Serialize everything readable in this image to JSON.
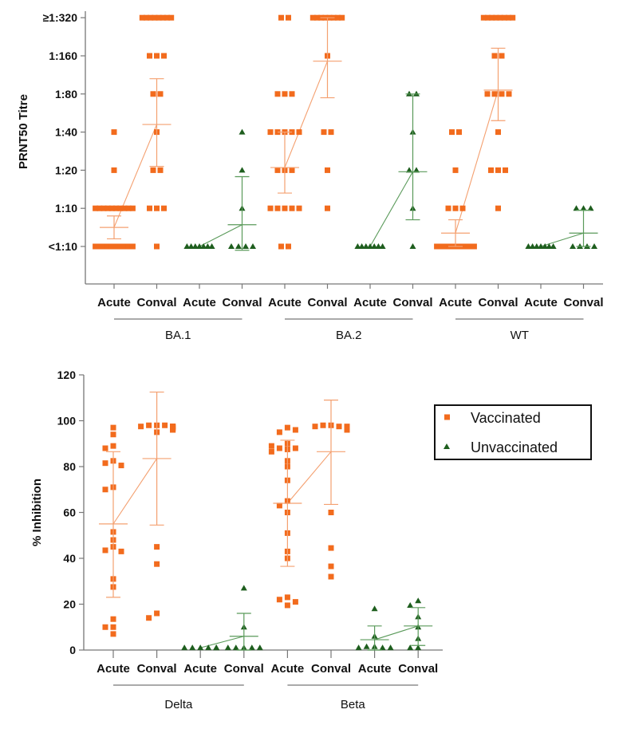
{
  "colors": {
    "vaccinated": "#f26b1d",
    "vaccinated_line": "#f4a070",
    "unvaccinated": "#1e5e1e",
    "unvaccinated_line": "#5a9a5a",
    "axis": "#777777"
  },
  "legend": {
    "items": [
      {
        "label": "Vaccinated",
        "marker": "square"
      },
      {
        "label": "Unvaccinated",
        "marker": "triangle"
      }
    ],
    "placement": "top-right of lower chart"
  },
  "chart_data": [
    {
      "type": "scatter",
      "title": "",
      "ylabel": "PRNT50 Titre",
      "xlabel": "",
      "yscale": "log2-categorical",
      "ytick_labels": [
        "<1:10",
        "1:10",
        "1:20",
        "1:40",
        "1:80",
        "1:160",
        "≥1:320"
      ],
      "yticks": [
        0,
        1,
        2,
        3,
        4,
        5,
        6
      ],
      "categories": [
        "Acute",
        "Conval",
        "Acute",
        "Conval",
        "Acute",
        "Conval",
        "Acute",
        "Conval",
        "Acute",
        "Conval",
        "Acute",
        "Conval"
      ],
      "groups": [
        {
          "label": "BA.1",
          "span": [
            0,
            3
          ]
        },
        {
          "label": "BA.2",
          "span": [
            4,
            7
          ]
        },
        {
          "label": "WT",
          "span": [
            8,
            11
          ]
        }
      ],
      "series": [
        {
          "name": "BA.1 Vaccinated Acute",
          "cat": 0,
          "status": "vaccinated",
          "points": {
            "0": 10,
            "1": 10,
            "2": 1,
            "3": 1
          },
          "mean": 0.5,
          "err": [
            0.2,
            0.8
          ]
        },
        {
          "name": "BA.1 Vaccinated Conval",
          "cat": 1,
          "status": "vaccinated",
          "points": {
            "0": 1,
            "1": 3,
            "2": 2,
            "3": 1,
            "4": 2,
            "5": 3,
            "6": 8
          },
          "mean": 3.2,
          "err": [
            2.1,
            4.4
          ]
        },
        {
          "name": "BA.1 Unvaccinated Acute",
          "cat": 2,
          "status": "unvaccinated",
          "points": {
            "0": 7
          },
          "mean": 0.0,
          "err": [
            0.0,
            0.0
          ]
        },
        {
          "name": "BA.1 Unvaccinated Conval",
          "cat": 3,
          "status": "unvaccinated",
          "points": {
            "0": 4,
            "1": 1,
            "2": 1,
            "3": 1
          },
          "mean": 0.57,
          "err": [
            -0.1,
            1.83
          ]
        },
        {
          "name": "BA.2 Vaccinated Acute",
          "cat": 4,
          "status": "vaccinated",
          "points": {
            "0": 2,
            "1": 5,
            "2": 3,
            "3": 5,
            "4": 3,
            "6": 2
          },
          "mean": 2.07,
          "err": [
            1.4,
            3.0
          ]
        },
        {
          "name": "BA.2 Vaccinated Conval",
          "cat": 5,
          "status": "vaccinated",
          "points": {
            "1": 1,
            "2": 1,
            "3": 2,
            "5": 1,
            "6": 8
          },
          "mean": 4.86,
          "err": [
            3.9,
            6.0
          ]
        },
        {
          "name": "BA.2 Unvaccinated Acute",
          "cat": 6,
          "status": "unvaccinated",
          "points": {
            "0": 7
          },
          "mean": 0.0,
          "err": [
            0.0,
            0.0
          ]
        },
        {
          "name": "BA.2 Unvaccinated Conval",
          "cat": 7,
          "status": "unvaccinated",
          "points": {
            "0": 1,
            "1": 1,
            "2": 2,
            "3": 1,
            "4": 2
          },
          "mean": 1.96,
          "err": [
            0.7,
            4.0
          ]
        },
        {
          "name": "WT Vaccinated Acute",
          "cat": 8,
          "status": "vaccinated",
          "points": {
            "0": 10,
            "1": 3,
            "2": 1,
            "3": 2
          },
          "mean": 0.35,
          "err": [
            0.0,
            0.7
          ]
        },
        {
          "name": "WT Vaccinated Conval",
          "cat": 9,
          "status": "vaccinated",
          "points": {
            "1": 1,
            "2": 3,
            "3": 1,
            "4": 4,
            "5": 2,
            "6": 8
          },
          "mean": 4.1,
          "err": [
            3.3,
            5.2
          ]
        },
        {
          "name": "WT Unvaccinated Acute",
          "cat": 10,
          "status": "unvaccinated",
          "points": {
            "0": 7
          },
          "mean": 0.0,
          "err": [
            0.0,
            0.0
          ]
        },
        {
          "name": "WT Unvaccinated Conval",
          "cat": 11,
          "status": "unvaccinated",
          "points": {
            "0": 4,
            "1": 3
          },
          "mean": 0.35,
          "err": [
            0.0,
            0.95
          ]
        }
      ],
      "connectors": [
        [
          0,
          1
        ],
        [
          2,
          3
        ],
        [
          4,
          5
        ],
        [
          6,
          7
        ],
        [
          8,
          9
        ],
        [
          10,
          11
        ]
      ]
    },
    {
      "type": "scatter",
      "title": "",
      "ylabel": "% Inhibition",
      "xlabel": "",
      "ylim": [
        0,
        120
      ],
      "yticks": [
        0,
        20,
        40,
        60,
        80,
        100,
        120
      ],
      "categories": [
        "Acute",
        "Conval",
        "Acute",
        "Conval",
        "Acute",
        "Conval",
        "Acute",
        "Conval"
      ],
      "groups": [
        {
          "label": "Delta",
          "span": [
            0,
            3
          ]
        },
        {
          "label": "Beta",
          "span": [
            4,
            7
          ]
        }
      ],
      "series": [
        {
          "name": "Delta Vaccinated Acute",
          "cat": 0,
          "status": "vaccinated",
          "values": [
            97,
            94,
            89,
            88,
            82.5,
            81.5,
            80.5,
            71,
            70,
            51.5,
            48,
            45,
            43.5,
            43,
            31,
            27.5,
            13.5,
            10,
            10,
            7
          ],
          "mean": 55,
          "err": [
            23,
            86.5
          ]
        },
        {
          "name": "Delta Vaccinated Conval",
          "cat": 1,
          "status": "vaccinated",
          "values": [
            98,
            98,
            98,
            97.5,
            97.5,
            97.5,
            97.5,
            97.5,
            97,
            97,
            97,
            96.5,
            96,
            96,
            95,
            45,
            37.5,
            16,
            14
          ],
          "mean": 83.5,
          "err": [
            54.5,
            112.5
          ]
        },
        {
          "name": "Delta Unvaccinated Acute",
          "cat": 2,
          "status": "unvaccinated",
          "values": [
            1,
            1,
            1,
            1,
            1,
            1,
            1
          ],
          "mean": 1,
          "err": [
            1,
            1
          ]
        },
        {
          "name": "Delta Unvaccinated Conval",
          "cat": 3,
          "status": "unvaccinated",
          "values": [
            27,
            10,
            1,
            1,
            1,
            1,
            1
          ],
          "mean": 6,
          "err": [
            0,
            16
          ]
        },
        {
          "name": "Beta Vaccinated Acute",
          "cat": 4,
          "status": "vaccinated",
          "values": [
            97,
            95,
            96,
            90,
            88,
            88,
            89,
            87.5,
            86.5,
            82.5,
            80,
            74,
            65,
            63,
            60,
            51,
            43,
            40,
            23,
            22,
            21,
            19.5
          ],
          "mean": 64,
          "err": [
            36.5,
            91.5
          ]
        },
        {
          "name": "Beta Vaccinated Conval",
          "cat": 5,
          "status": "vaccinated",
          "values": [
            98,
            98,
            97.5,
            97.5,
            97.5,
            97,
            97,
            97,
            97,
            96.5,
            96,
            60,
            44.5,
            36.5,
            32
          ],
          "mean": 86.5,
          "err": [
            63.5,
            109
          ]
        },
        {
          "name": "Beta Unvaccinated Acute",
          "cat": 6,
          "status": "unvaccinated",
          "values": [
            18,
            6,
            1.5,
            1.5,
            1,
            1,
            1
          ],
          "mean": 4.5,
          "err": [
            0,
            10.5
          ]
        },
        {
          "name": "Beta Unvaccinated Conval",
          "cat": 7,
          "status": "unvaccinated",
          "values": [
            21.5,
            19.5,
            14.5,
            10,
            5,
            1,
            1
          ],
          "mean": 10.5,
          "err": [
            2,
            18.5
          ]
        }
      ],
      "connectors": [
        [
          0,
          1
        ],
        [
          2,
          3
        ],
        [
          4,
          5
        ],
        [
          6,
          7
        ]
      ]
    }
  ]
}
